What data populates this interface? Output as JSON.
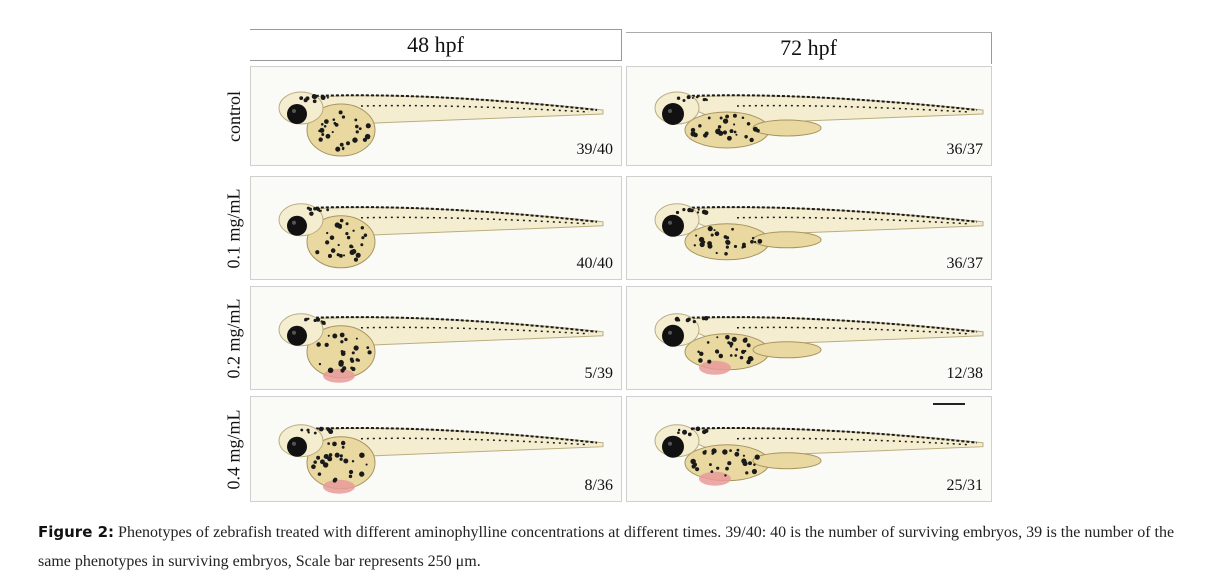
{
  "columns": [
    "48 hpf",
    "72 hpf"
  ],
  "rows": [
    {
      "label": "control",
      "counts": [
        "39/40",
        "36/37"
      ]
    },
    {
      "label": "0.1 mg/mL",
      "counts": [
        "40/40",
        "36/37"
      ]
    },
    {
      "label": "0.2 mg/mL",
      "counts": [
        "5/39",
        "12/38"
      ]
    },
    {
      "label": "0.4 mg/mL",
      "counts": [
        "8/36",
        "25/31"
      ]
    }
  ],
  "caption": {
    "label": "Figure 2:",
    "text": "Phenotypes of zebrafish treated with different aminophylline concentrations at different times. 39/40: 40 is the number of surviving embryos, 39 is the number of the same phenotypes in surviving embryos, Scale bar represents 250 μm."
  },
  "colors": {
    "yolk": "#e9d9a0",
    "body": "#f4edd0",
    "pigment": "#1a1a1a",
    "edema": "#e89a9a"
  }
}
